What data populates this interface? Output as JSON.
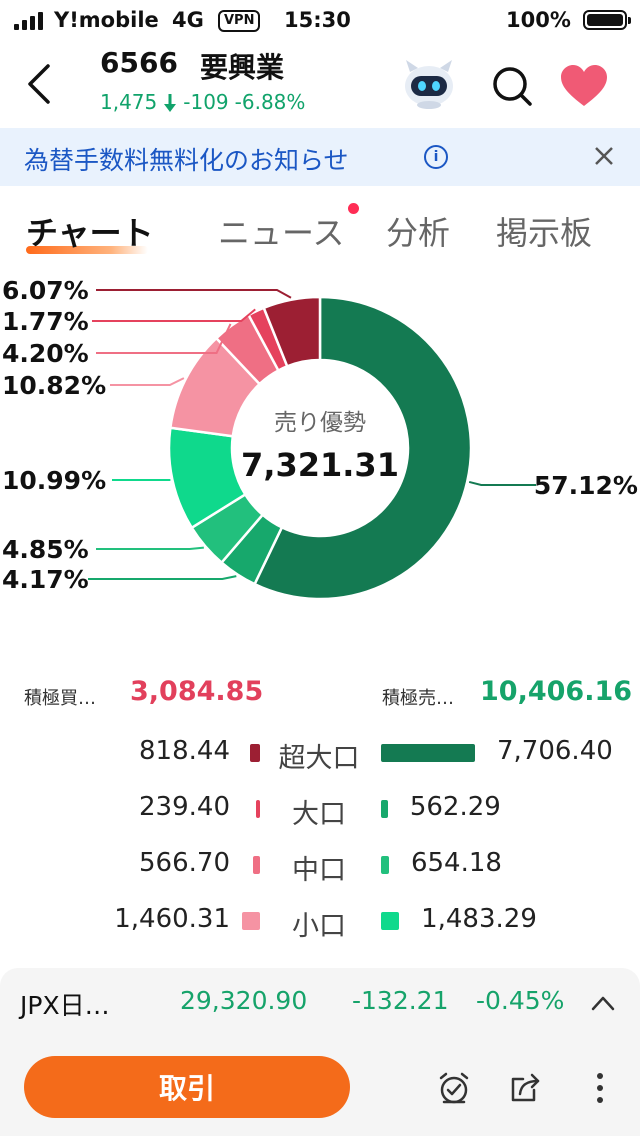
{
  "status_bar": {
    "carrier": "Y!mobile",
    "network": "4G",
    "vpn": "VPN",
    "time": "15:30",
    "battery": "100%"
  },
  "header": {
    "code": "6566",
    "name": "要興業",
    "price": "1,475",
    "change": "-109",
    "change_pct": "-6.88%"
  },
  "notice": {
    "text": "為替手数料無料化のお知らせ",
    "info_glyph": "i"
  },
  "tabs": [
    {
      "label": "チャート",
      "active": true
    },
    {
      "label": "ニュース",
      "active": false
    },
    {
      "label": "分析",
      "active": false
    },
    {
      "label": "掲示板",
      "active": false
    }
  ],
  "chart_data": {
    "type": "pie",
    "donut": true,
    "center_label": "売り優勢",
    "center_value": "7,321.31",
    "slices": [
      {
        "label": "57.12%",
        "value": 57.12,
        "color": "#147a52"
      },
      {
        "label": "4.17%",
        "value": 4.17,
        "color": "#17a86c"
      },
      {
        "label": "4.85%",
        "value": 4.85,
        "color": "#22c07d"
      },
      {
        "label": "10.99%",
        "value": 10.99,
        "color": "#0fd98c"
      },
      {
        "label": "10.82%",
        "value": 10.82,
        "color": "#f593a3"
      },
      {
        "label": "4.20%",
        "value": 4.2,
        "color": "#ef6f84"
      },
      {
        "label": "1.77%",
        "value": 1.77,
        "color": "#e5425d"
      },
      {
        "label": "6.07%",
        "value": 6.07,
        "color": "#9c1f33"
      }
    ]
  },
  "summary": {
    "buy_label": "積極買…",
    "buy_value": "3,084.85",
    "sell_label": "積極売…",
    "sell_value": "10,406.16"
  },
  "flows": [
    {
      "buy": "818.44",
      "label": "超大口",
      "sell": "7,706.40",
      "buy_value": 818.44,
      "sell_value": 7706.4,
      "buy_color": "#9c1f33",
      "sell_color": "#147a52"
    },
    {
      "buy": "239.40",
      "label": "大口",
      "sell": "562.29",
      "buy_value": 239.4,
      "sell_value": 562.29,
      "buy_color": "#e5425d",
      "sell_color": "#17a86c"
    },
    {
      "buy": "566.70",
      "label": "中口",
      "sell": "654.18",
      "buy_value": 566.7,
      "sell_value": 654.18,
      "buy_color": "#ef6f84",
      "sell_color": "#22c07d"
    },
    {
      "buy": "1,460.31",
      "label": "小口",
      "sell": "1,483.29",
      "buy_value": 1460.31,
      "sell_value": 1483.29,
      "buy_color": "#f593a3",
      "sell_color": "#0fd98c"
    }
  ],
  "index_bar": {
    "name": "JPX日…",
    "price": "29,320.90",
    "change": "-132.21",
    "change_pct": "-0.45%"
  },
  "bottom_bar": {
    "trade_label": "取引",
    "icons": [
      "alert-clock-icon",
      "share-icon",
      "more-icon"
    ]
  }
}
